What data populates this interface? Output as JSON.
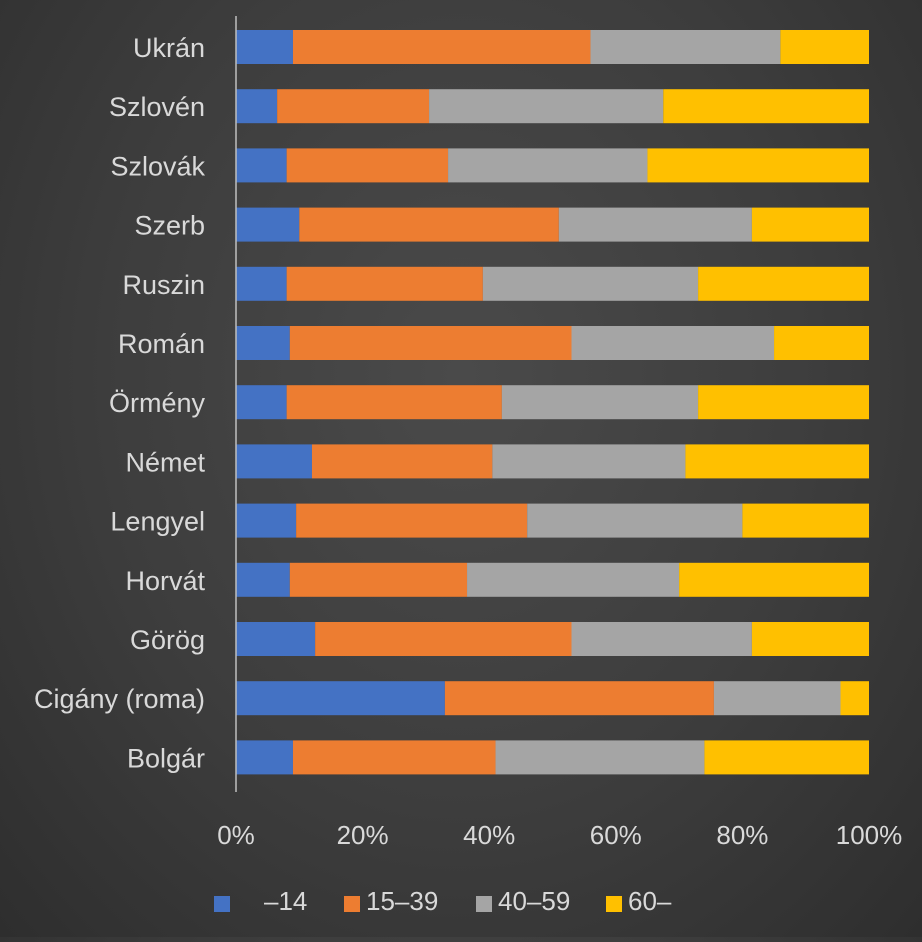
{
  "chart_data": {
    "type": "bar",
    "orientation": "horizontal",
    "stacked": "percent",
    "categories": [
      "Ukrán",
      "Szlovén",
      "Szlovák",
      "Szerb",
      "Ruszin",
      "Román",
      "Örmény",
      "Német",
      "Lengyel",
      "Horvát",
      "Görög",
      "Cigány (roma)",
      "Bolgár"
    ],
    "series": [
      {
        "name": "–14",
        "color": "#4472c4",
        "values": [
          9,
          6.5,
          8,
          10,
          8,
          8.5,
          8,
          12,
          9.5,
          8.5,
          12.5,
          33,
          9
        ]
      },
      {
        "name": "15–39",
        "color": "#ed7d31",
        "values": [
          47,
          24,
          25.5,
          41,
          31,
          44.5,
          34,
          28.5,
          36.5,
          28,
          40.5,
          42.5,
          32
        ]
      },
      {
        "name": "40–59",
        "color": "#a5a5a5",
        "values": [
          30,
          37,
          31.5,
          30.5,
          34,
          32,
          31,
          30.5,
          34,
          33.5,
          28.5,
          20,
          33
        ]
      },
      {
        "name": "60–",
        "color": "#ffc000",
        "values": [
          14,
          32.5,
          35,
          18.5,
          27,
          15,
          27,
          29,
          20,
          30,
          18.5,
          4.5,
          26
        ]
      }
    ],
    "x_ticks": [
      "0%",
      "20%",
      "40%",
      "60%",
      "80%",
      "100%"
    ],
    "xlim": [
      0,
      100
    ],
    "grid": false,
    "legend_position": "bottom"
  }
}
